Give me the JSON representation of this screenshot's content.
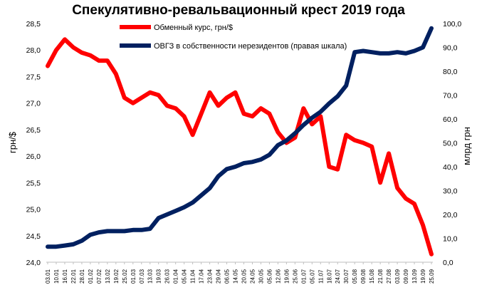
{
  "chart_data": {
    "type": "line",
    "title": "Спекулятивно-ревальвационный крест 2019 года",
    "ylabel_left": "грн/$",
    "ylabel_right": "млрд грн",
    "ylim_left": [
      24.0,
      28.5
    ],
    "ylim_right": [
      0,
      100
    ],
    "yticks_left": [
      "28,5",
      "28,0",
      "27,5",
      "27,0",
      "26,5",
      "26,0",
      "25,5",
      "25,0",
      "24,5",
      "24,0"
    ],
    "yticks_right": [
      "100,0",
      "90,0",
      "80,0",
      "70,0",
      "60,0",
      "50,0",
      "40,0",
      "30,0",
      "20,0",
      "10,0",
      "0,0"
    ],
    "categories": [
      "03.01",
      "10.01",
      "16.01",
      "22.01",
      "28.01",
      "01.02",
      "07.02",
      "13.02",
      "19.02",
      "25.02",
      "01.03",
      "07.03",
      "13.03",
      "19.03",
      "26.03",
      "01.04",
      "05.04",
      "11.04",
      "17.04",
      "23.04",
      "29.04",
      "06.05",
      "14.05",
      "20.05",
      "24.05",
      "30.05",
      "05.06",
      "12.06",
      "19.06",
      "25.06",
      "01.07",
      "05.07",
      "11.07",
      "18.07",
      "24.07",
      "30.07",
      "05.08",
      "09.08",
      "15.08",
      "21.08",
      "27.08",
      "03.09",
      "09.09",
      "13.09",
      "19.09",
      "25.09"
    ],
    "series": [
      {
        "name": "Обменный курс, грн/$",
        "axis": "left",
        "color": "#ff0000",
        "values": [
          27.7,
          28.0,
          28.2,
          28.05,
          27.95,
          27.9,
          27.8,
          27.8,
          27.55,
          27.1,
          27.0,
          27.1,
          27.2,
          27.15,
          26.95,
          26.9,
          26.75,
          26.4,
          26.8,
          27.2,
          26.95,
          27.1,
          27.2,
          26.8,
          26.75,
          26.9,
          26.8,
          26.45,
          26.25,
          26.35,
          26.9,
          26.6,
          26.75,
          25.8,
          25.75,
          26.4,
          26.3,
          26.25,
          26.18,
          25.5,
          26.05,
          25.4,
          25.2,
          25.1,
          24.7,
          24.15
        ]
      },
      {
        "name": "ОВГЗ в собственности нерезидентов (правая шкала)",
        "axis": "right",
        "color": "#002060",
        "values": [
          6.5,
          6.5,
          7.0,
          7.5,
          9.0,
          11.5,
          12.5,
          13.0,
          13.0,
          13.0,
          13.5,
          13.5,
          14.0,
          18.5,
          20.0,
          21.5,
          23.0,
          25.0,
          28.0,
          31.0,
          36.0,
          39.0,
          40.0,
          41.5,
          42.0,
          43.0,
          45.0,
          49.0,
          51.0,
          54.0,
          57.5,
          60.5,
          63.0,
          66.5,
          69.5,
          74.0,
          88.0,
          88.5,
          88.0,
          87.5,
          87.5,
          88.0,
          87.5,
          88.5,
          90.0,
          98.0
        ]
      }
    ]
  }
}
